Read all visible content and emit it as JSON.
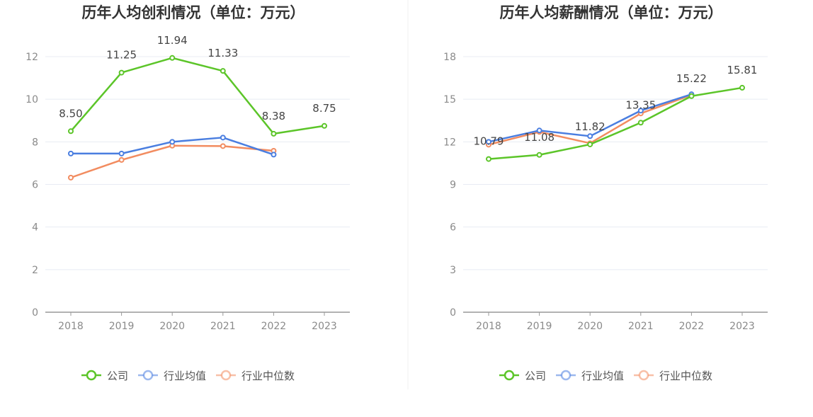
{
  "chart_data": [
    {
      "type": "line",
      "title": "历年人均创利情况（单位：万元）",
      "categories": [
        "2018",
        "2019",
        "2020",
        "2021",
        "2022",
        "2023"
      ],
      "ylim": [
        0,
        12
      ],
      "yticks": [
        0,
        2,
        4,
        6,
        8,
        10,
        12
      ],
      "grid": true,
      "legend_position": "bottom",
      "series": [
        {
          "name": "公司",
          "color": "#5cc529",
          "values": [
            8.5,
            11.25,
            11.94,
            11.33,
            8.38,
            8.75
          ],
          "labels": [
            "8.50",
            "11.25",
            "11.94",
            "11.33",
            "8.38",
            "8.75"
          ]
        },
        {
          "name": "行业均值",
          "color": "#4a7ee0",
          "values": [
            7.45,
            7.45,
            8.0,
            8.2,
            7.4,
            null
          ]
        },
        {
          "name": "行业中位数",
          "color": "#f28c60",
          "values": [
            6.32,
            7.15,
            7.82,
            7.8,
            7.58,
            null
          ]
        }
      ]
    },
    {
      "type": "line",
      "title": "历年人均薪酬情况（单位：万元）",
      "categories": [
        "2018",
        "2019",
        "2020",
        "2021",
        "2022",
        "2023"
      ],
      "ylim": [
        0,
        18
      ],
      "yticks": [
        0,
        3,
        6,
        9,
        12,
        15,
        18
      ],
      "grid": true,
      "legend_position": "bottom",
      "series": [
        {
          "name": "公司",
          "color": "#5cc529",
          "values": [
            10.79,
            11.08,
            11.82,
            13.35,
            15.22,
            15.81
          ],
          "labels": [
            "10.79",
            "11.08",
            "11.82",
            "13.35",
            "15.22",
            "15.81"
          ]
        },
        {
          "name": "行业均值",
          "color": "#4a7ee0",
          "values": [
            12.0,
            12.8,
            12.4,
            14.2,
            15.35,
            null
          ]
        },
        {
          "name": "行业中位数",
          "color": "#f28c60",
          "values": [
            11.8,
            12.7,
            11.9,
            14.0,
            15.3,
            null
          ]
        }
      ]
    }
  ]
}
